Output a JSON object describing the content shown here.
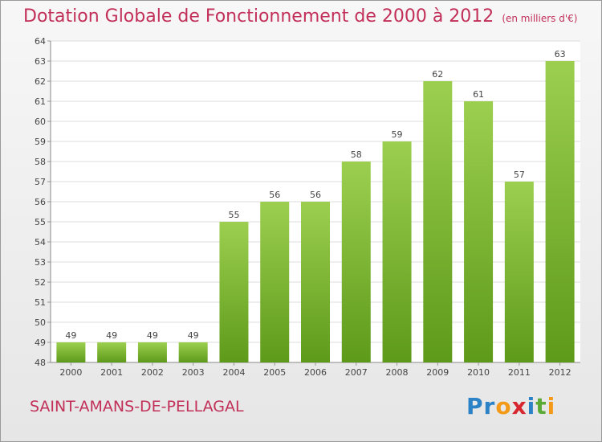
{
  "header": {
    "title": "Dotation Globale de Fonctionnement de 2000 à 2012",
    "unit": "(en milliers d'€)"
  },
  "footer": {
    "commune": "SAINT-AMANS-DE-PELLAGAL",
    "logo": "Proxiti"
  },
  "chart_data": {
    "type": "bar",
    "title": "Dotation Globale de Fonctionnement de 2000 à 2012",
    "subtitle": "(en milliers d'€)",
    "xlabel": "",
    "ylabel": "",
    "categories": [
      "2000",
      "2001",
      "2002",
      "2003",
      "2004",
      "2005",
      "2006",
      "2007",
      "2008",
      "2009",
      "2010",
      "2011",
      "2012"
    ],
    "values": [
      49,
      49,
      49,
      49,
      55,
      56,
      56,
      58,
      59,
      62,
      61,
      57,
      63
    ],
    "ylim": [
      48,
      64
    ],
    "yticks": [
      48,
      49,
      50,
      51,
      52,
      53,
      54,
      55,
      56,
      57,
      58,
      59,
      60,
      61,
      62,
      63,
      64
    ],
    "grid": true,
    "colors": {
      "bar_top": "#9ccf4f",
      "bar_bottom": "#5e9a1a",
      "text": "#c2305a"
    }
  }
}
